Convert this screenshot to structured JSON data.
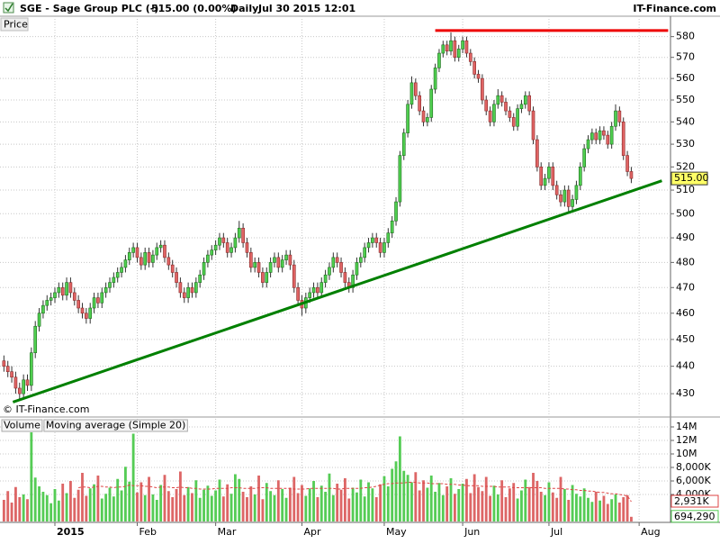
{
  "chart_data": [
    {
      "type": "candlestick",
      "title": "SGE - Sage Group PLC (-)",
      "subtitle": "515.00 (0.00%)",
      "period": "Daily",
      "timestamp": "Jul 30 2015 12:01",
      "source": "IT-Finance.com",
      "y_label": "Price",
      "copyright": "© IT-Finance.com",
      "scale": "log",
      "grid": true,
      "up_color": "#4fcf4f",
      "down_color": "#e06464",
      "xlim": [
        -1,
        170
      ],
      "ylim": [
        422,
        590
      ],
      "yticks": [
        430,
        440,
        450,
        460,
        470,
        480,
        490,
        500,
        510,
        520,
        530,
        540,
        550,
        560,
        570,
        580
      ],
      "last_label": "515.00",
      "open": [
        442,
        440,
        438,
        436,
        432,
        430,
        435,
        433,
        445,
        455,
        460,
        463,
        465,
        466,
        468,
        470,
        467,
        472,
        468,
        465,
        462,
        460,
        458,
        462,
        466,
        464,
        468,
        470,
        472,
        474,
        476,
        478,
        481,
        484,
        486,
        482,
        479,
        484,
        480,
        483,
        486,
        487,
        482,
        479,
        476,
        472,
        468,
        466,
        470,
        468,
        472,
        475,
        480,
        483,
        485,
        487,
        490,
        488,
        484,
        486,
        490,
        494,
        488,
        484,
        478,
        480,
        476,
        472,
        476,
        480,
        482,
        478,
        481,
        483,
        479,
        470,
        465,
        462,
        466,
        468,
        470,
        468,
        472,
        475,
        478,
        482,
        480,
        476,
        472,
        470,
        475,
        480,
        482,
        486,
        488,
        490,
        488,
        484,
        488,
        492,
        497,
        505,
        525,
        535,
        548,
        558,
        552,
        545,
        540,
        542,
        555,
        565,
        572,
        576,
        573,
        578,
        570,
        574,
        578,
        572,
        568,
        562,
        560,
        550,
        545,
        540,
        548,
        552,
        549,
        545,
        542,
        538,
        546,
        548,
        552,
        545,
        532,
        520,
        512,
        515,
        520,
        512,
        508,
        505,
        510,
        503,
        506,
        512,
        520,
        528,
        532,
        535,
        532,
        536,
        534,
        530,
        538,
        545,
        540,
        525,
        518
      ],
      "high": [
        444,
        442,
        440,
        438,
        434,
        437,
        437,
        447,
        457,
        462,
        465,
        467,
        468,
        470,
        472,
        472,
        474,
        474,
        470,
        467,
        464,
        462,
        464,
        468,
        468,
        470,
        472,
        474,
        476,
        478,
        480,
        483,
        486,
        488,
        488,
        484,
        486,
        486,
        485,
        488,
        489,
        489,
        484,
        481,
        478,
        474,
        470,
        472,
        472,
        474,
        477,
        482,
        485,
        487,
        489,
        492,
        492,
        490,
        488,
        492,
        497,
        496,
        490,
        486,
        482,
        482,
        478,
        478,
        482,
        484,
        484,
        483,
        485,
        485,
        481,
        472,
        467,
        468,
        470,
        472,
        472,
        474,
        477,
        480,
        484,
        484,
        482,
        478,
        474,
        477,
        482,
        484,
        488,
        490,
        492,
        492,
        490,
        490,
        494,
        499,
        507,
        527,
        537,
        550,
        561,
        560,
        554,
        547,
        544,
        557,
        567,
        574,
        578,
        578,
        582,
        580,
        576,
        580,
        580,
        574,
        570,
        564,
        562,
        552,
        547,
        550,
        555,
        554,
        551,
        547,
        544,
        548,
        550,
        554,
        554,
        547,
        534,
        522,
        517,
        522,
        522,
        514,
        510,
        512,
        512,
        508,
        514,
        522,
        530,
        534,
        537,
        537,
        538,
        538,
        536,
        540,
        548,
        547,
        542,
        527,
        520
      ],
      "low": [
        438,
        436,
        434,
        430,
        428,
        428,
        431,
        431,
        443,
        453,
        458,
        461,
        463,
        464,
        466,
        465,
        465,
        466,
        463,
        460,
        458,
        456,
        456,
        460,
        462,
        462,
        466,
        468,
        470,
        472,
        474,
        476,
        479,
        482,
        480,
        477,
        477,
        478,
        478,
        481,
        484,
        480,
        477,
        474,
        470,
        466,
        464,
        464,
        466,
        466,
        470,
        473,
        478,
        481,
        483,
        485,
        486,
        482,
        482,
        484,
        488,
        486,
        482,
        476,
        476,
        474,
        470,
        470,
        474,
        478,
        476,
        476,
        479,
        477,
        468,
        463,
        459,
        460,
        464,
        466,
        466,
        466,
        470,
        473,
        476,
        478,
        474,
        470,
        468,
        468,
        473,
        478,
        480,
        484,
        486,
        486,
        482,
        482,
        486,
        490,
        495,
        503,
        523,
        533,
        546,
        550,
        543,
        538,
        538,
        540,
        553,
        563,
        570,
        571,
        571,
        568,
        568,
        572,
        570,
        566,
        560,
        558,
        548,
        543,
        538,
        538,
        546,
        547,
        543,
        540,
        536,
        536,
        544,
        546,
        543,
        530,
        518,
        510,
        510,
        513,
        510,
        506,
        503,
        503,
        501,
        501,
        504,
        510,
        518,
        526,
        530,
        530,
        530,
        532,
        528,
        528,
        536,
        538,
        523,
        516,
        513
      ],
      "close": [
        440,
        438,
        436,
        432,
        430,
        435,
        433,
        445,
        455,
        460,
        463,
        465,
        466,
        468,
        470,
        467,
        472,
        468,
        465,
        462,
        460,
        458,
        462,
        466,
        464,
        468,
        470,
        472,
        474,
        476,
        478,
        481,
        484,
        486,
        482,
        479,
        484,
        480,
        483,
        486,
        487,
        482,
        479,
        476,
        472,
        468,
        466,
        470,
        468,
        472,
        475,
        480,
        483,
        485,
        487,
        490,
        488,
        484,
        486,
        490,
        494,
        488,
        484,
        478,
        480,
        476,
        472,
        476,
        480,
        482,
        478,
        481,
        483,
        479,
        470,
        465,
        462,
        466,
        468,
        470,
        468,
        472,
        475,
        478,
        482,
        480,
        476,
        472,
        470,
        475,
        480,
        482,
        486,
        488,
        490,
        488,
        484,
        488,
        492,
        497,
        505,
        525,
        535,
        548,
        558,
        552,
        545,
        540,
        542,
        555,
        565,
        572,
        576,
        573,
        578,
        570,
        574,
        578,
        572,
        568,
        562,
        560,
        550,
        545,
        540,
        548,
        552,
        549,
        545,
        542,
        538,
        546,
        548,
        552,
        545,
        532,
        520,
        512,
        515,
        520,
        512,
        508,
        505,
        510,
        503,
        506,
        512,
        520,
        528,
        532,
        535,
        532,
        536,
        534,
        530,
        538,
        545,
        540,
        525,
        518,
        515
      ],
      "trendlines": [
        {
          "color": "#008000",
          "x": [
            2.3,
            167.8
          ],
          "y": [
            427,
            514
          ]
        },
        {
          "color": "#ee0000",
          "x": [
            110,
            169.4
          ],
          "y": [
            583,
            583
          ]
        }
      ]
    },
    {
      "type": "bar",
      "grid": true,
      "down_color": "#dd6666",
      "xlim": [
        -1,
        170
      ],
      "ylim": [
        0,
        15200000
      ],
      "yticks": [
        {
          "value": 4000000,
          "label": "4,000K"
        },
        {
          "value": 6000000,
          "label": "6,000K"
        },
        {
          "value": 8000000,
          "label": "8,000K"
        },
        {
          "value": 10000000,
          "label": "10M"
        },
        {
          "value": 12000000,
          "label": "12M"
        },
        {
          "value": 14000000,
          "label": "14M"
        }
      ],
      "xticks": [
        {
          "value": 13,
          "label": "2015"
        },
        {
          "value": 34,
          "label": "Feb"
        },
        {
          "value": 54,
          "label": "Mar"
        },
        {
          "value": 76,
          "label": "Apr"
        },
        {
          "value": 97,
          "label": "May"
        },
        {
          "value": 117,
          "label": "Jun"
        },
        {
          "value": 139,
          "label": "Jul"
        },
        {
          "value": 162,
          "label": "Aug"
        }
      ],
      "series": [
        {
          "name": "Volume",
          "color": "#55cc55",
          "last_label": "694,290",
          "values": [
            3200000,
            4500000,
            2800000,
            5100000,
            3600000,
            4000000,
            3300000,
            13200000,
            6500000,
            5200000,
            4400000,
            3900000,
            2700000,
            4800000,
            3100000,
            5600000,
            4200000,
            6000000,
            3500000,
            4700000,
            7200000,
            3800000,
            4900000,
            5500000,
            6800000,
            3400000,
            4100000,
            5000000,
            3700000,
            6300000,
            4600000,
            8100000,
            5900000,
            13000000,
            4300000,
            5800000,
            3900000,
            6600000,
            4000000,
            3200000,
            5400000,
            6900000,
            4500000,
            3600000,
            4800000,
            7400000,
            3900000,
            5100000,
            4200000,
            6100000,
            3500000,
            4700000,
            5300000,
            3800000,
            4600000,
            6200000,
            3700000,
            5500000,
            4100000,
            7000000,
            6300000,
            4400000,
            3600000,
            5200000,
            4000000,
            6800000,
            3300000,
            5700000,
            4500000,
            3900000,
            6100000,
            4800000,
            3500000,
            5000000,
            6600000,
            4200000,
            5400000,
            3800000,
            4900000,
            6000000,
            3600000,
            5300000,
            4400000,
            7100000,
            3900000,
            5600000,
            4700000,
            6400000,
            3400000,
            5000000,
            4300000,
            6200000,
            3700000,
            5800000,
            4900000,
            3600000,
            5500000,
            6700000,
            5200000,
            7800000,
            8900000,
            12600000,
            7500000,
            6900000,
            5800000,
            7300000,
            4600000,
            6100000,
            5000000,
            6800000,
            4400000,
            5700000,
            3900000,
            5200000,
            6400000,
            4100000,
            4800000,
            5600000,
            6300000,
            4200000,
            7000000,
            5100000,
            4500000,
            6600000,
            3800000,
            5300000,
            4000000,
            6100000,
            3600000,
            4900000,
            5700000,
            3400000,
            4600000,
            6200000,
            5100000,
            7200000,
            6000000,
            4400000,
            3900000,
            5800000,
            4300000,
            3500000,
            6600000,
            4800000,
            3200000,
            5400000,
            4100000,
            3700000,
            4900000,
            3500000,
            2900000,
            4400000,
            3100000,
            3800000,
            2600000,
            3300000,
            4000000,
            2800000,
            3600000,
            3900000,
            694290
          ]
        },
        {
          "name": "Moving average (Simple 20)",
          "color": "#dd4444",
          "last_label": "2,931K",
          "values": [
            null,
            null,
            null,
            null,
            null,
            null,
            null,
            null,
            null,
            null,
            null,
            null,
            null,
            null,
            null,
            null,
            null,
            null,
            null,
            5000000,
            5100000,
            5100000,
            5000000,
            5100000,
            5200000,
            5200000,
            5100000,
            5100000,
            5000000,
            5100000,
            5100000,
            5200000,
            5400000,
            5300000,
            5300000,
            5300000,
            5200000,
            5200000,
            5100000,
            5000000,
            5100000,
            5100000,
            5100000,
            5000000,
            5000000,
            5100000,
            5000000,
            5000000,
            4900000,
            4900000,
            4800000,
            4800000,
            4800000,
            4800000,
            4900000,
            4900000,
            4900000,
            4900000,
            5000000,
            5000000,
            5000000,
            4900000,
            4900000,
            4900000,
            4900000,
            5000000,
            5000000,
            5000000,
            4900000,
            4900000,
            4900000,
            4900000,
            4900000,
            4900000,
            4800000,
            4800000,
            4800000,
            4800000,
            4900000,
            4900000,
            4900000,
            4900000,
            4900000,
            4900000,
            4900000,
            4800000,
            4800000,
            4900000,
            4900000,
            4900000,
            4900000,
            4900000,
            5000000,
            5000000,
            5100000,
            5200000,
            5400000,
            5500000,
            5600000,
            5600000,
            5700000,
            5700000,
            5700000,
            5800000,
            5800000,
            5800000,
            5700000,
            5700000,
            5700000,
            5600000,
            5600000,
            5600000,
            5600000,
            5500000,
            5500000,
            5500000,
            5400000,
            5400000,
            5300000,
            5300000,
            5300000,
            5300000,
            5200000,
            5200000,
            5200000,
            5200000,
            5100000,
            5100000,
            5100000,
            5100000,
            5000000,
            5000000,
            5000000,
            5000000,
            5000000,
            5000000,
            5000000,
            5000000,
            4900000,
            4900000,
            4900000,
            4900000,
            4900000,
            4800000,
            4800000,
            4700000,
            4700000,
            4600000,
            4600000,
            4500000,
            4500000,
            4400000,
            4300000,
            4300000,
            4200000,
            4100000,
            4100000,
            4000000,
            3900000,
            3800000,
            2931000
          ]
        }
      ]
    }
  ]
}
